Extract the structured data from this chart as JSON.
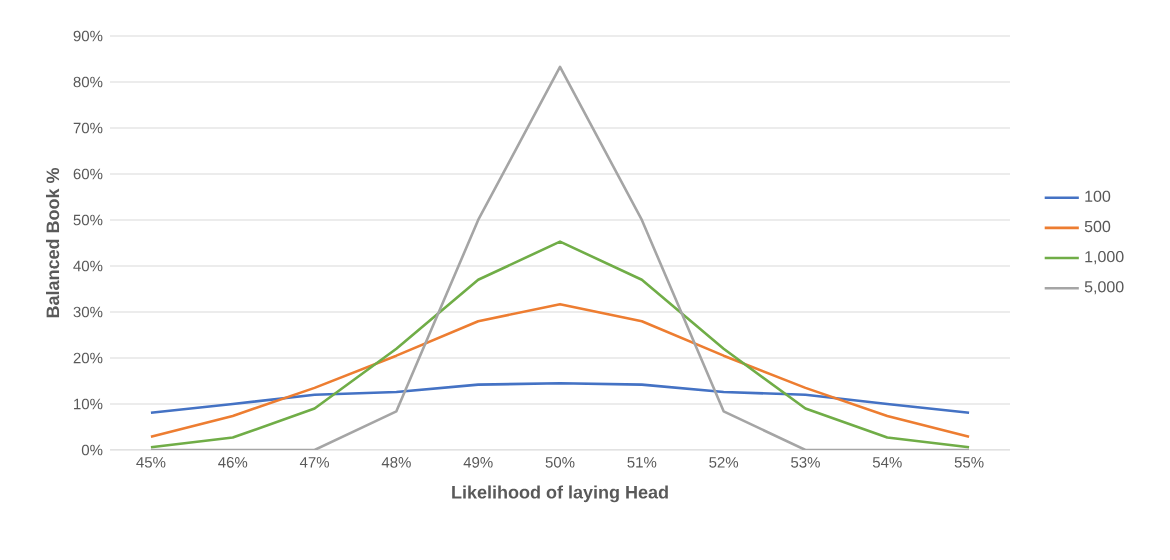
{
  "chart_data": {
    "type": "line",
    "xlabel": "Likelihood of laying Head",
    "ylabel": "Balanced Book %",
    "categories": [
      "45%",
      "46%",
      "47%",
      "48%",
      "49%",
      "50%",
      "51%",
      "52%",
      "53%",
      "54%",
      "55%"
    ],
    "series": [
      {
        "name": "100",
        "color": "#4472c4",
        "values": [
          8.1,
          10,
          12,
          12.6,
          14.2,
          14.5,
          14.2,
          12.6,
          12,
          10,
          8.1
        ]
      },
      {
        "name": "500",
        "color": "#ed7d31",
        "values": [
          2.9,
          7.4,
          13.5,
          20.5,
          28,
          31.7,
          28,
          20.5,
          13.5,
          7.4,
          2.9
        ]
      },
      {
        "name": "1,000",
        "color": "#70ad47",
        "values": [
          0.6,
          2.7,
          9,
          22,
          37,
          45.3,
          37,
          22,
          9,
          2.7,
          0.6
        ]
      },
      {
        "name": "5,000",
        "color": "#a5a5a5",
        "values": [
          0,
          0,
          0,
          8.4,
          50,
          83.3,
          50,
          8.4,
          0,
          0,
          0
        ]
      }
    ],
    "ylim": [
      0,
      90
    ],
    "yticks": [
      {
        "value": 0,
        "label": "0%"
      },
      {
        "value": 10,
        "label": "10%"
      },
      {
        "value": 20,
        "label": "20%"
      },
      {
        "value": 30,
        "label": "30%"
      },
      {
        "value": 40,
        "label": "40%"
      },
      {
        "value": 50,
        "label": "50%"
      },
      {
        "value": 60,
        "label": "60%"
      },
      {
        "value": 70,
        "label": "70%"
      },
      {
        "value": 80,
        "label": "80%"
      },
      {
        "value": 90,
        "label": "90%"
      }
    ],
    "grid": "y",
    "legend": "right",
    "marker": "none",
    "line_style": "solid"
  }
}
